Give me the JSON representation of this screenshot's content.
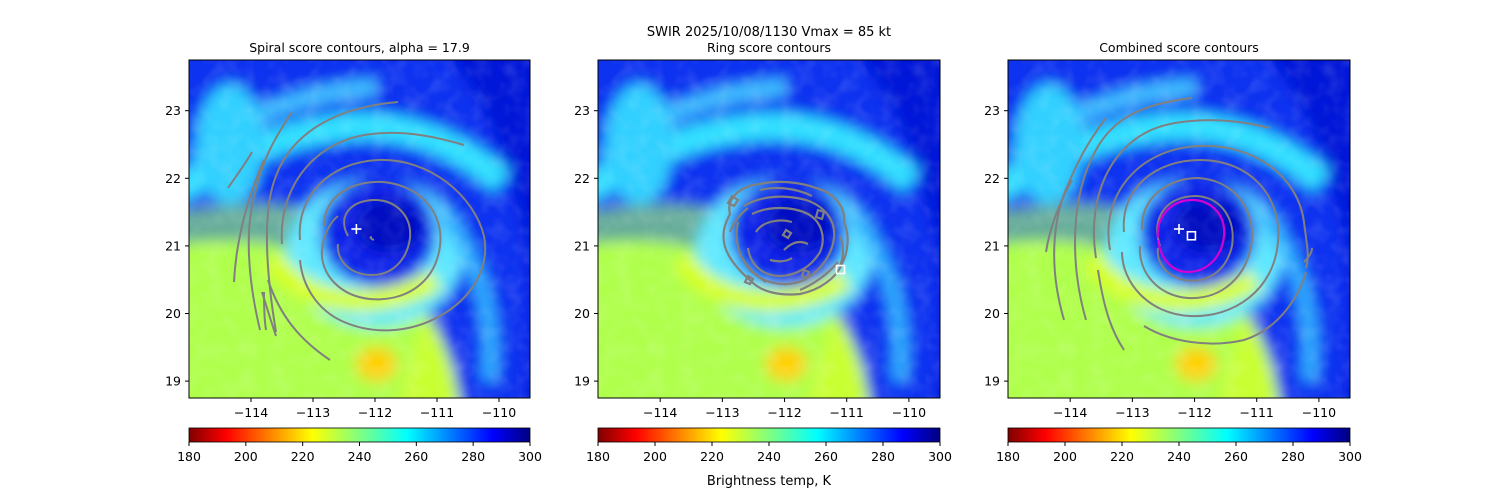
{
  "suptitle": {
    "line1": "SWIR  2025/10/08/1130    Vmax = 85 kt"
  },
  "colorbar": {
    "label": "Brightness temp, K",
    "ticks": [
      180,
      200,
      220,
      240,
      260,
      280,
      300
    ],
    "range": [
      180,
      300
    ],
    "colormap": "jet_r"
  },
  "colors": {
    "contour": "#808080",
    "combined_best_contour": "#d400d4",
    "markers": "#ffffff"
  },
  "chart_data": [
    {
      "type": "heatmap",
      "title": "Spiral score contours, alpha = 17.9",
      "xlim": [
        -115.0,
        -109.5
      ],
      "ylim": [
        18.75,
        23.75
      ],
      "xticks": [
        -114,
        -113,
        -112,
        -111,
        -110
      ],
      "xtick_labels": [
        "−114",
        "−113",
        "−112",
        "−111",
        "−110"
      ],
      "yticks": [
        19,
        20,
        21,
        22,
        23
      ],
      "ytick_labels": [
        "19",
        "20",
        "21",
        "22",
        "23"
      ],
      "grid": false,
      "markers": [
        {
          "symbol": "plus",
          "x": -112.3,
          "y": 21.25
        }
      ],
      "storm_center": [
        -112.0,
        21.1
      ]
    },
    {
      "type": "heatmap",
      "title": "Ring score contours",
      "xlim": [
        -115.0,
        -109.5
      ],
      "ylim": [
        18.75,
        23.75
      ],
      "xticks": [
        -114,
        -113,
        -112,
        -111,
        -110
      ],
      "xtick_labels": [
        "−114",
        "−113",
        "−112",
        "−111",
        "−110"
      ],
      "yticks": [
        19,
        20,
        21,
        22,
        23
      ],
      "ytick_labels": [
        "19",
        "20",
        "21",
        "22",
        "23"
      ],
      "grid": false,
      "markers": [
        {
          "symbol": "square",
          "x": -111.1,
          "y": 20.65
        }
      ],
      "storm_center": [
        -112.0,
        21.1
      ]
    },
    {
      "type": "heatmap",
      "title": "Combined score contours",
      "xlim": [
        -115.0,
        -109.5
      ],
      "ylim": [
        18.75,
        23.75
      ],
      "xticks": [
        -114,
        -113,
        -112,
        -111,
        -110
      ],
      "xtick_labels": [
        "−114",
        "−113",
        "−112",
        "−111",
        "−110"
      ],
      "yticks": [
        19,
        20,
        21,
        22,
        23
      ],
      "ytick_labels": [
        "19",
        "20",
        "21",
        "22",
        "23"
      ],
      "grid": false,
      "markers": [
        {
          "symbol": "plus",
          "x": -112.25,
          "y": 21.25
        },
        {
          "symbol": "square",
          "x": -112.05,
          "y": 21.15
        }
      ],
      "storm_center": [
        -112.0,
        21.1
      ]
    }
  ]
}
